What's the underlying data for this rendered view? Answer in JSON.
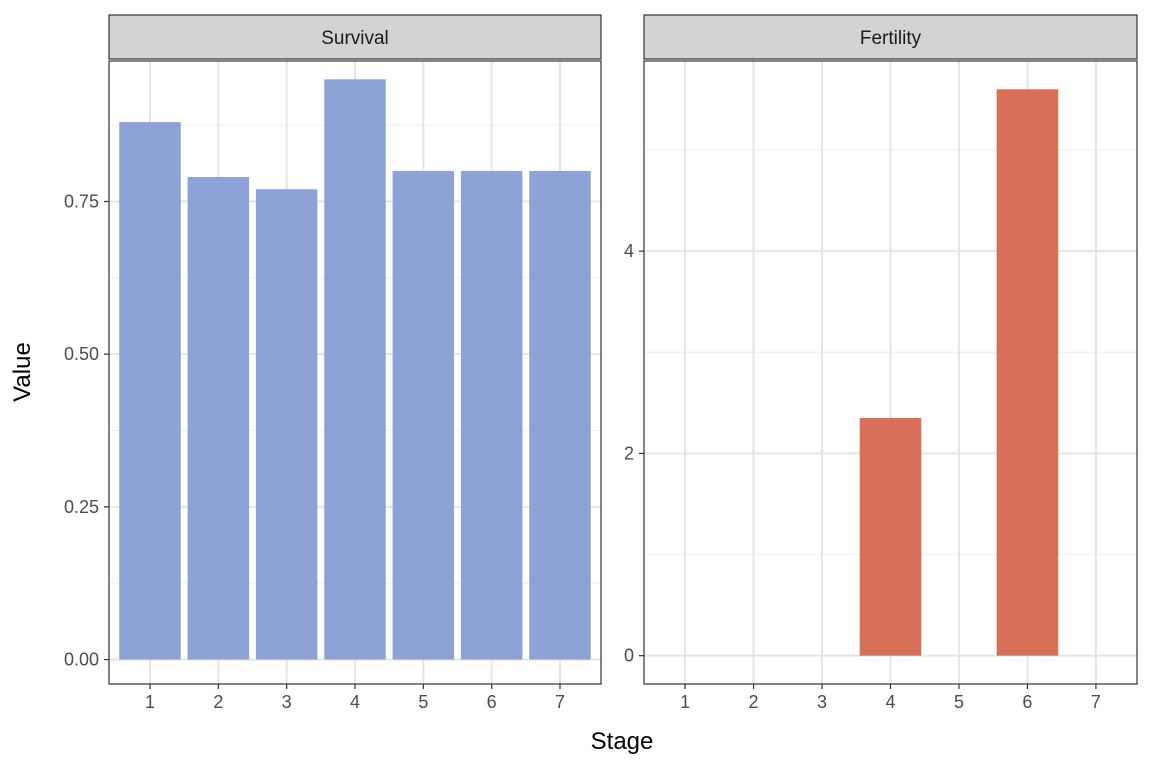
{
  "chart_data": {
    "type": "bar",
    "xlabel": "Stage",
    "ylabel": "Value",
    "grid": true,
    "legend": "none",
    "panels": [
      {
        "title": "Survival",
        "categories": [
          "1",
          "2",
          "3",
          "4",
          "5",
          "6",
          "7"
        ],
        "values": [
          0.88,
          0.79,
          0.77,
          0.95,
          0.8,
          0.8,
          0.8
        ],
        "ylim": [
          -0.04,
          0.98
        ],
        "yticks": [
          0,
          0.25,
          0.5,
          0.75
        ],
        "ytick_labels": [
          "0.00",
          "0.25",
          "0.50",
          "0.75"
        ],
        "color": "#8DA3D7"
      },
      {
        "title": "Fertility",
        "categories": [
          "1",
          "2",
          "3",
          "4",
          "5",
          "6",
          "7"
        ],
        "values": [
          0,
          0,
          0,
          2.35,
          0,
          5.6,
          0
        ],
        "ylim": [
          -0.28,
          5.88
        ],
        "yticks": [
          0,
          2,
          4
        ],
        "ytick_labels": [
          "0",
          "2",
          "4"
        ],
        "color": "#D86F59"
      }
    ]
  },
  "colors": {
    "strip_fill": "#D3D3D3",
    "panel_border": "#333333",
    "grid_major": "#E5E5E5",
    "grid_minor": "#F1F1F1",
    "text": "#4D4D4D",
    "axis_title": "#000000"
  }
}
